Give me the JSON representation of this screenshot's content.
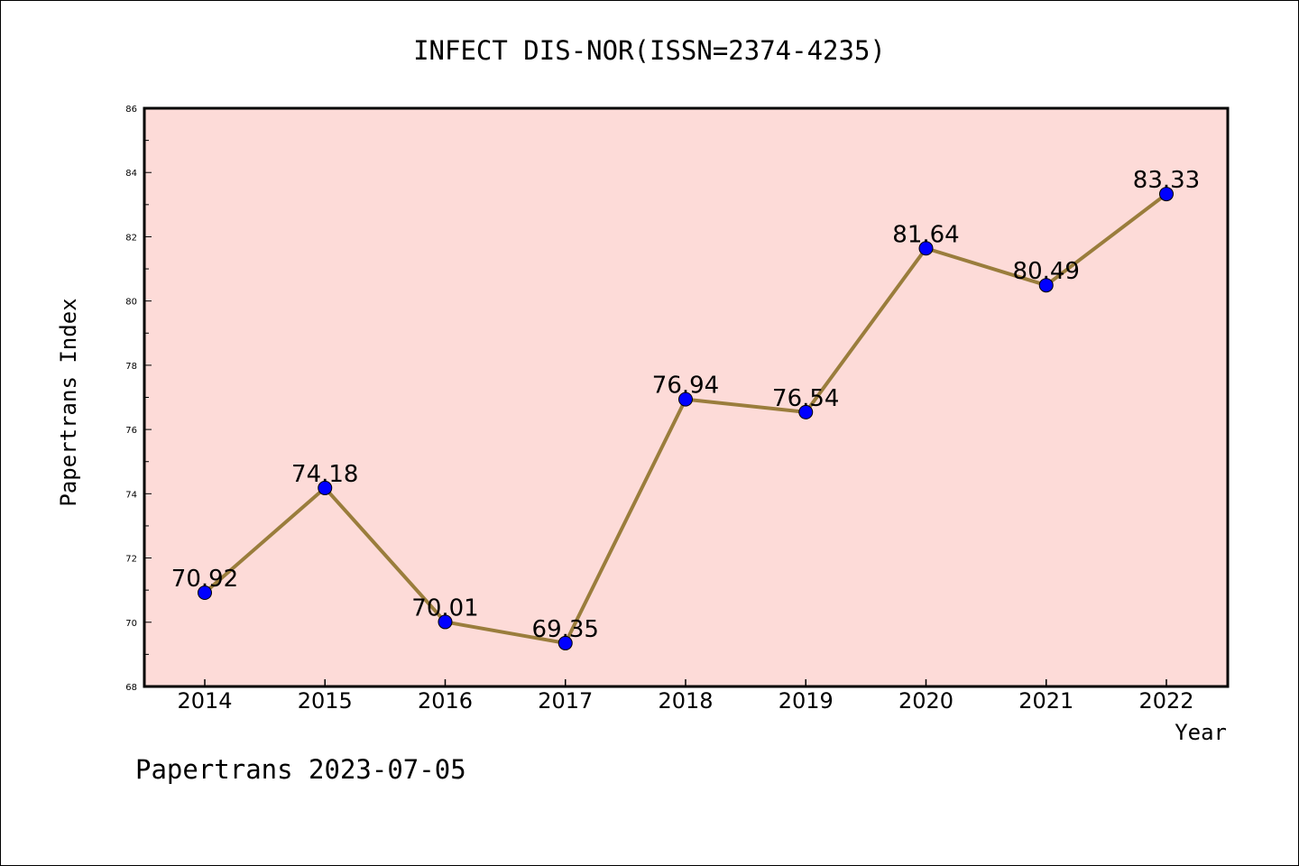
{
  "chart_data": {
    "type": "line",
    "title": "INFECT DIS-NOR(ISSN=2374-4235)",
    "xlabel": "Year",
    "ylabel": "Papertrans Index",
    "categories": [
      "2014",
      "2015",
      "2016",
      "2017",
      "2018",
      "2019",
      "2020",
      "2021",
      "2022"
    ],
    "values": [
      70.92,
      74.18,
      70.01,
      69.35,
      76.94,
      76.54,
      81.64,
      80.49,
      83.33
    ],
    "data_labels": [
      "70.92",
      "74.18",
      "70.01",
      "69.35",
      "76.94",
      "76.54",
      "81.64",
      "80.49",
      "83.33"
    ],
    "ylim": [
      68,
      86
    ],
    "y_ticks": [
      "68",
      "70",
      "72",
      "74",
      "76",
      "78",
      "80",
      "82",
      "84",
      "86"
    ],
    "grid": false,
    "colors": {
      "plot_background": "#fddbd8",
      "line": "#9a7d3c",
      "marker": "#0000ff"
    },
    "footer": "Papertrans 2023-07-05"
  }
}
